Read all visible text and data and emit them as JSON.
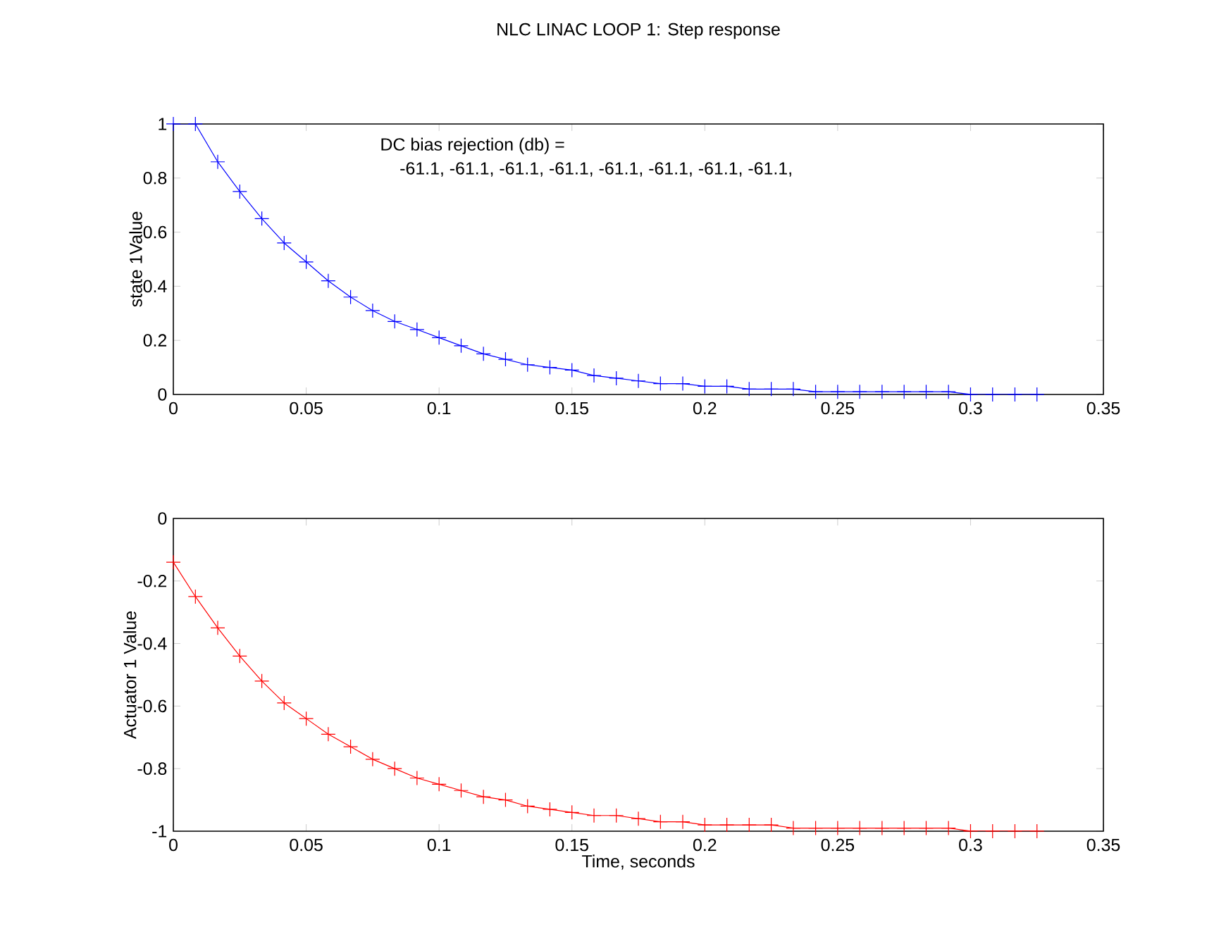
{
  "chart_data": [
    {
      "type": "line",
      "title": "NLC LINAC LOOP 1:  Step response",
      "ylabel": "state 1Value",
      "annotations": [
        "DC bias rejection (db) =",
        "-61.1, -61.1, -61.1, -61.1, -61.1, -61.1, -61.1, -61.1,"
      ],
      "xlim": [
        0,
        0.35
      ],
      "xticks": [
        0,
        0.05,
        0.1,
        0.15,
        0.2,
        0.25,
        0.3,
        0.35
      ],
      "ylim": [
        0,
        1
      ],
      "yticks": [
        0,
        0.2,
        0.4,
        0.6,
        0.8,
        1
      ],
      "marker": "cross",
      "x": [
        0,
        0.0083,
        0.0167,
        0.025,
        0.0333,
        0.0417,
        0.05,
        0.0583,
        0.0667,
        0.075,
        0.0833,
        0.0917,
        0.1,
        0.1083,
        0.1167,
        0.125,
        0.1333,
        0.1417,
        0.15,
        0.1583,
        0.1667,
        0.175,
        0.1833,
        0.1917,
        0.2,
        0.2083,
        0.2167,
        0.225,
        0.2333,
        0.2417,
        0.25,
        0.2583,
        0.2667,
        0.275,
        0.2833,
        0.2917,
        0.3,
        0.3083,
        0.3167,
        0.325
      ],
      "series": [
        {
          "color": "#0000ff",
          "values": [
            1,
            1,
            0.86,
            0.75,
            0.65,
            0.56,
            0.49,
            0.42,
            0.36,
            0.31,
            0.27,
            0.24,
            0.21,
            0.18,
            0.15,
            0.13,
            0.11,
            0.1,
            0.09,
            0.07,
            0.06,
            0.05,
            0.04,
            0.04,
            0.03,
            0.03,
            0.02,
            0.02,
            0.02,
            0.01,
            0.01,
            0.01,
            0.01,
            0.01,
            0.01,
            0.01,
            0,
            0,
            0,
            0
          ]
        }
      ]
    },
    {
      "type": "line",
      "xlabel": "Time, seconds",
      "ylabel": "Actuator 1 Value",
      "xlim": [
        0,
        0.35
      ],
      "xticks": [
        0,
        0.05,
        0.1,
        0.15,
        0.2,
        0.25,
        0.3,
        0.35
      ],
      "ylim": [
        -1,
        0
      ],
      "yticks": [
        -1,
        -0.8,
        -0.6,
        -0.4,
        -0.2,
        0
      ],
      "marker": "cross",
      "x": [
        0,
        0.0083,
        0.0167,
        0.025,
        0.0333,
        0.0417,
        0.05,
        0.0583,
        0.0667,
        0.075,
        0.0833,
        0.0917,
        0.1,
        0.1083,
        0.1167,
        0.125,
        0.1333,
        0.1417,
        0.15,
        0.1583,
        0.1667,
        0.175,
        0.1833,
        0.1917,
        0.2,
        0.2083,
        0.2167,
        0.225,
        0.2333,
        0.2417,
        0.25,
        0.2583,
        0.2667,
        0.275,
        0.2833,
        0.2917,
        0.3,
        0.3083,
        0.3167,
        0.325
      ],
      "series": [
        {
          "color": "#ff0000",
          "values": [
            -0.14,
            -0.25,
            -0.35,
            -0.44,
            -0.52,
            -0.59,
            -0.64,
            -0.69,
            -0.73,
            -0.77,
            -0.8,
            -0.83,
            -0.85,
            -0.87,
            -0.89,
            -0.9,
            -0.92,
            -0.93,
            -0.94,
            -0.95,
            -0.95,
            -0.96,
            -0.97,
            -0.97,
            -0.98,
            -0.98,
            -0.98,
            -0.98,
            -0.99,
            -0.99,
            -0.99,
            -0.99,
            -0.99,
            -0.99,
            -0.99,
            -0.99,
            -1,
            -1,
            -1,
            -1
          ]
        }
      ]
    }
  ]
}
